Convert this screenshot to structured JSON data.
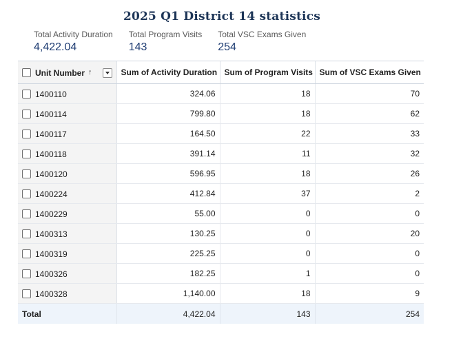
{
  "title": "2025 Q1 District 14 statistics",
  "summary": [
    {
      "label": "Total Activity Duration",
      "value": "4,422.04"
    },
    {
      "label": "Total Program Visits",
      "value": "143"
    },
    {
      "label": "Total VSC Exams Given",
      "value": "254"
    }
  ],
  "table": {
    "columns": [
      "Unit Number",
      "Sum of Activity Duration",
      "Sum of Program Visits",
      "Sum of VSC Exams Given"
    ],
    "sort_indicator": "↑",
    "rows": [
      [
        "1400110",
        "324.06",
        "18",
        "70"
      ],
      [
        "1400114",
        "799.80",
        "18",
        "62"
      ],
      [
        "1400117",
        "164.50",
        "22",
        "33"
      ],
      [
        "1400118",
        "391.14",
        "11",
        "32"
      ],
      [
        "1400120",
        "596.95",
        "18",
        "26"
      ],
      [
        "1400224",
        "412.84",
        "37",
        "2"
      ],
      [
        "1400229",
        "55.00",
        "0",
        "0"
      ],
      [
        "1400313",
        "130.25",
        "0",
        "20"
      ],
      [
        "1400319",
        "225.25",
        "0",
        "0"
      ],
      [
        "1400326",
        "182.25",
        "1",
        "0"
      ],
      [
        "1400328",
        "1,140.00",
        "18",
        "9"
      ]
    ],
    "total": [
      "Total",
      "4,422.04",
      "143",
      "254"
    ]
  }
}
